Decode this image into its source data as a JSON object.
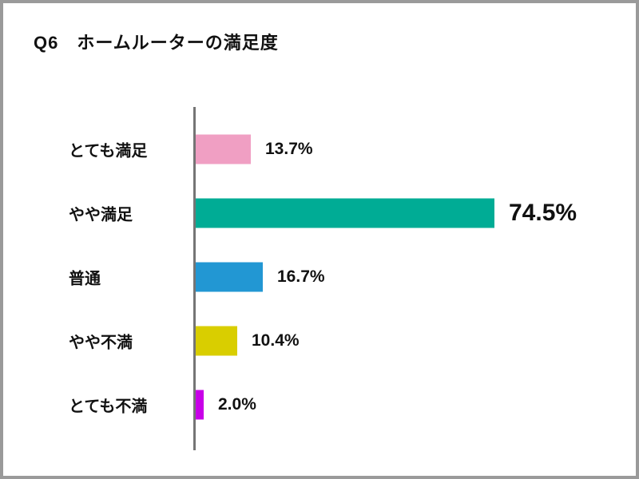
{
  "chart_data": {
    "type": "bar",
    "orientation": "horizontal",
    "title": "Q6　ホームルーターの満足度",
    "categories": [
      "とても満足",
      "やや満足",
      "普通",
      "やや不満",
      "とても不満"
    ],
    "values": [
      13.7,
      74.5,
      16.7,
      10.4,
      2.0
    ],
    "value_labels": [
      "13.7%",
      "74.5%",
      "16.7%",
      "10.4%",
      "2.0%"
    ],
    "bar_colors": [
      "#F09FC3",
      "#00AC95",
      "#2297D3",
      "#D9CE00",
      "#C800E8"
    ],
    "highlight_index": 1,
    "xlabel": "",
    "ylabel": "",
    "xlim": [
      0,
      100
    ],
    "grid": false,
    "legend": false,
    "axis_color": "#757575",
    "frame_border_color": "#9A9A9A",
    "text_color": "#111111"
  }
}
